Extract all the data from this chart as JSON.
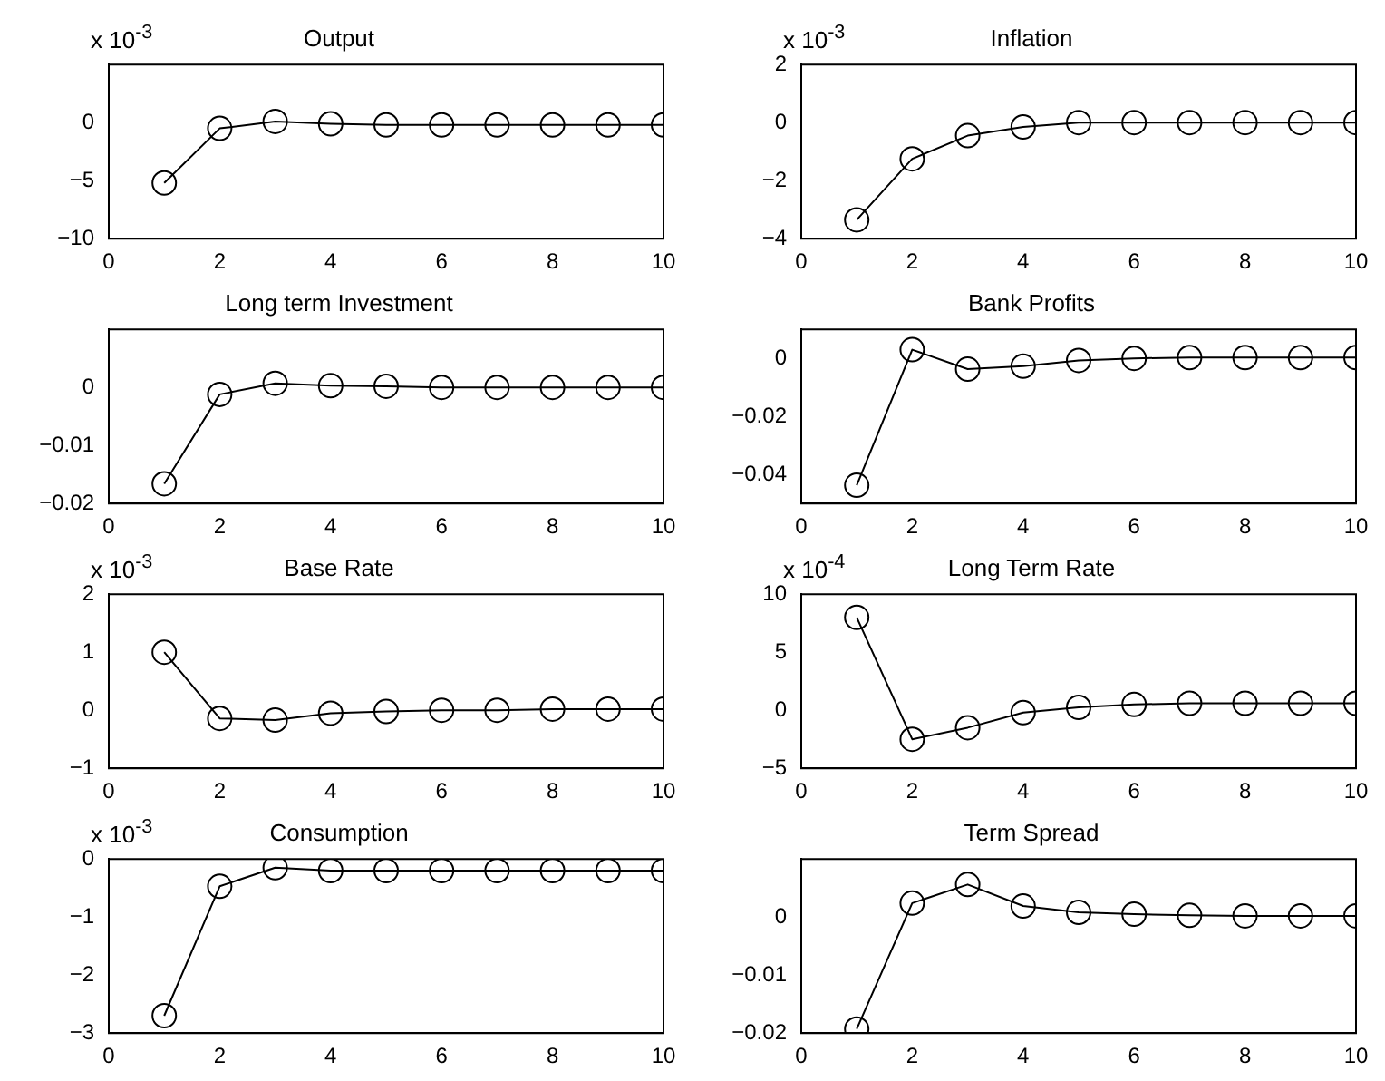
{
  "chart_data": [
    {
      "type": "line",
      "title": "Output",
      "annotations": [
        "x 10$^{-3}$"
      ],
      "x": [
        1,
        2,
        3,
        4,
        5,
        6,
        7,
        8,
        9,
        10
      ],
      "values": [
        -5.2,
        -0.5,
        0.1,
        -0.1,
        -0.2,
        -0.2,
        -0.2,
        -0.2,
        -0.2,
        -0.2
      ],
      "color": "#000000",
      "marker": "circle",
      "grid": false,
      "xlim": [
        0,
        10
      ],
      "xticks": [
        0,
        2,
        4,
        6,
        8,
        10
      ],
      "ylim": [
        -10,
        5
      ],
      "yticks": [
        -10,
        -5,
        0
      ]
    },
    {
      "type": "line",
      "title": "Inflation",
      "annotations": [
        "x 10$^{-3}$"
      ],
      "x": [
        1,
        2,
        3,
        4,
        5,
        6,
        7,
        8,
        9,
        10
      ],
      "values": [
        -3.35,
        -1.25,
        -0.45,
        -0.15,
        0,
        0,
        0,
        0,
        0,
        0
      ],
      "color": "#000000",
      "marker": "circle",
      "grid": false,
      "xlim": [
        0,
        10
      ],
      "xticks": [
        0,
        2,
        4,
        6,
        8,
        10
      ],
      "ylim": [
        -4,
        2
      ],
      "yticks": [
        -4,
        -2,
        0,
        2
      ]
    },
    {
      "type": "line",
      "title": "Long term Investment",
      "x": [
        1,
        2,
        3,
        4,
        5,
        6,
        7,
        8,
        9,
        10
      ],
      "values": [
        -0.0166,
        -0.0012,
        0.0007,
        0.0003,
        0.0002,
        0,
        0,
        0,
        0,
        0
      ],
      "color": "#000000",
      "marker": "circle",
      "grid": false,
      "xlim": [
        0,
        10
      ],
      "xticks": [
        0,
        2,
        4,
        6,
        8,
        10
      ],
      "ylim": [
        -0.02,
        0.01
      ],
      "yticks": [
        -0.02,
        -0.01,
        0
      ]
    },
    {
      "type": "line",
      "title": "Bank Profits",
      "x": [
        1,
        2,
        3,
        4,
        5,
        6,
        7,
        8,
        9,
        10
      ],
      "values": [
        -0.0437,
        0.003,
        -0.0037,
        -0.0027,
        -0.0007,
        0,
        0.0003,
        0.0003,
        0.0003,
        0.0003
      ],
      "color": "#000000",
      "marker": "circle",
      "grid": false,
      "xlim": [
        0,
        10
      ],
      "xticks": [
        0,
        2,
        4,
        6,
        8,
        10
      ],
      "ylim": [
        -0.05,
        0.01
      ],
      "yticks": [
        -0.04,
        -0.02,
        0
      ]
    },
    {
      "type": "line",
      "title": "Base Rate",
      "annotations": [
        "x 10$^{-3}$"
      ],
      "x": [
        1,
        2,
        3,
        4,
        5,
        6,
        7,
        8,
        9,
        10
      ],
      "values": [
        1.0,
        -0.14,
        -0.17,
        -0.05,
        -0.02,
        0,
        0,
        0.02,
        0.02,
        0.02
      ],
      "color": "#000000",
      "marker": "circle",
      "grid": false,
      "xlim": [
        0,
        10
      ],
      "xticks": [
        0,
        2,
        4,
        6,
        8,
        10
      ],
      "ylim": [
        -1,
        2
      ],
      "yticks": [
        -1,
        0,
        1,
        2
      ]
    },
    {
      "type": "line",
      "title": "Long Term Rate",
      "annotations": [
        "x 10$^{-4}$"
      ],
      "x": [
        1,
        2,
        3,
        4,
        5,
        6,
        7,
        8,
        9,
        10
      ],
      "values": [
        8.0,
        -2.5,
        -1.5,
        -0.2,
        0.25,
        0.5,
        0.6,
        0.6,
        0.6,
        0.6
      ],
      "color": "#000000",
      "marker": "circle",
      "grid": false,
      "xlim": [
        0,
        10
      ],
      "xticks": [
        0,
        2,
        4,
        6,
        8,
        10
      ],
      "ylim": [
        -5,
        10
      ],
      "yticks": [
        -5,
        0,
        5,
        10
      ]
    },
    {
      "type": "line",
      "title": "Consumption",
      "annotations": [
        "x 10$^{-3}$"
      ],
      "x": [
        1,
        2,
        3,
        4,
        5,
        6,
        7,
        8,
        9,
        10
      ],
      "values": [
        -2.7,
        -0.47,
        -0.15,
        -0.2,
        -0.2,
        -0.2,
        -0.2,
        -0.2,
        -0.2,
        -0.2
      ],
      "color": "#000000",
      "marker": "circle",
      "grid": false,
      "xlim": [
        0,
        10
      ],
      "xticks": [
        0,
        2,
        4,
        6,
        8,
        10
      ],
      "ylim": [
        -3,
        0
      ],
      "yticks": [
        -3,
        -2,
        -1,
        0
      ]
    },
    {
      "type": "line",
      "title": "Term Spread",
      "x": [
        1,
        2,
        3,
        4,
        5,
        6,
        7,
        8,
        9,
        10
      ],
      "values": [
        -0.0193,
        0.0024,
        0.0056,
        0.0019,
        0.0008,
        0.0005,
        0.0003,
        0.0002,
        0.0002,
        0.0002
      ],
      "color": "#000000",
      "marker": "circle",
      "grid": false,
      "xlim": [
        0,
        10
      ],
      "xticks": [
        0,
        2,
        4,
        6,
        8,
        10
      ],
      "ylim": [
        -0.02,
        0.01
      ],
      "yticks": [
        -0.02,
        -0.01,
        0
      ]
    }
  ]
}
